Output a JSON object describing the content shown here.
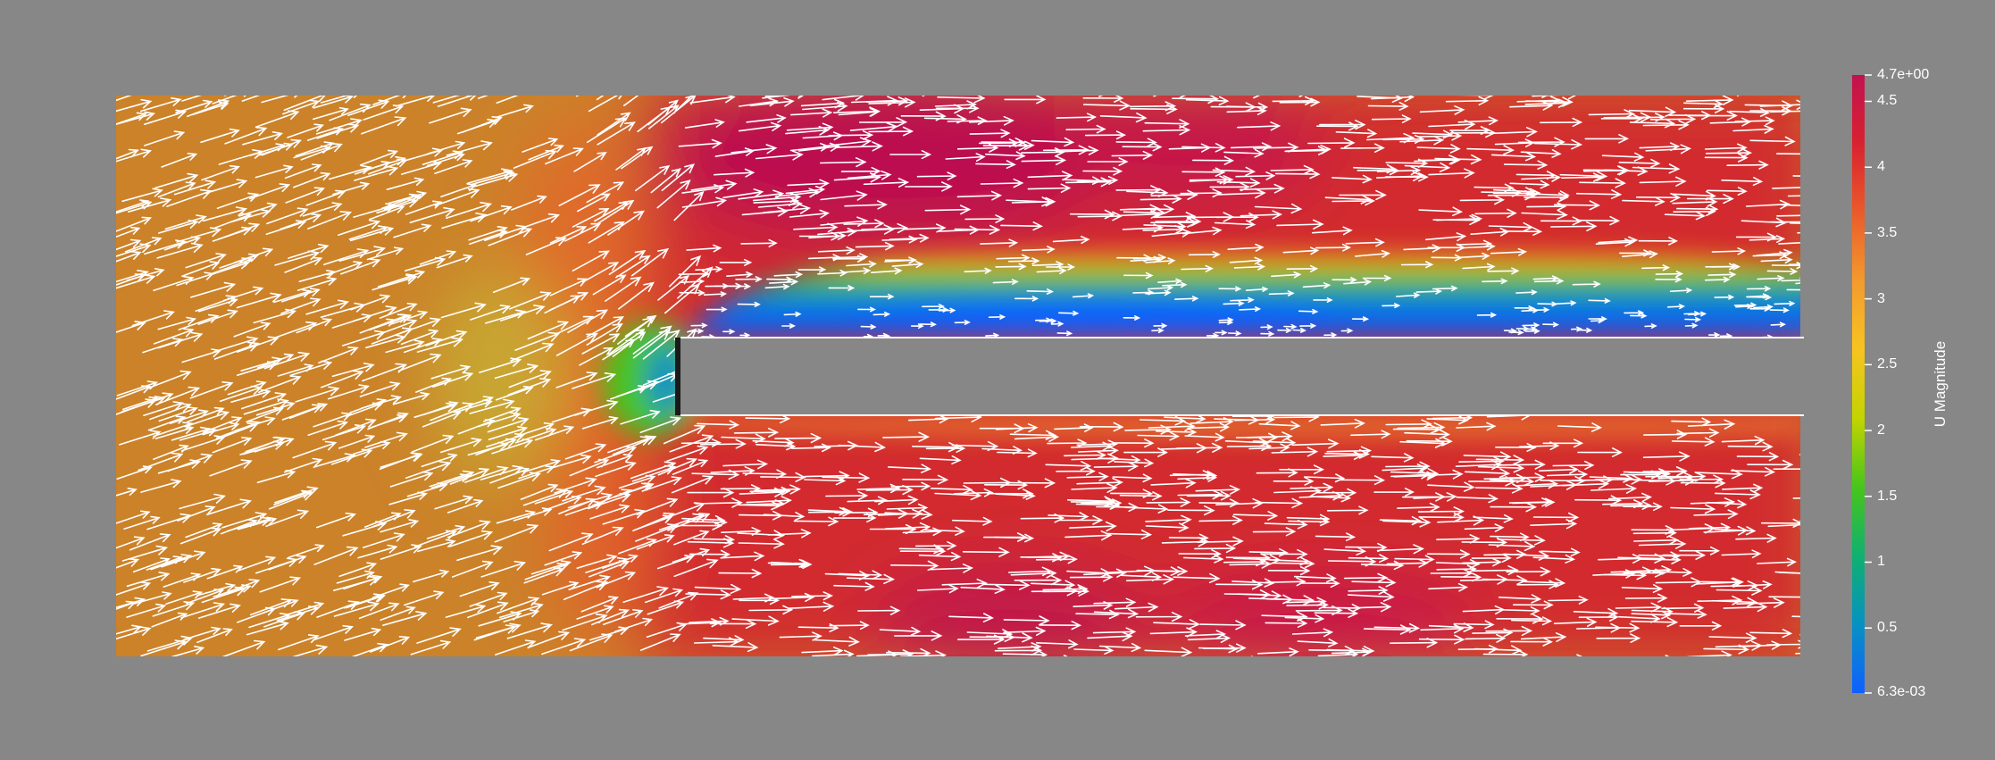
{
  "scene": {
    "background_color": "#878787",
    "glyph_color": "#ffffff",
    "obstacle_color": "#878787"
  },
  "colorbar": {
    "title": "U Magnitude",
    "range_min_label": "6.3e-03",
    "range_max_label": "4.7e+00",
    "range": [
      0.0063,
      4.7
    ],
    "ticks": [
      {
        "value": 4.5,
        "label": "4.5"
      },
      {
        "value": 4,
        "label": "4"
      },
      {
        "value": 3.5,
        "label": "3.5"
      },
      {
        "value": 3,
        "label": "3"
      },
      {
        "value": 2.5,
        "label": "2.5"
      },
      {
        "value": 2,
        "label": "2"
      },
      {
        "value": 1.5,
        "label": "1.5"
      },
      {
        "value": 1,
        "label": "1"
      },
      {
        "value": 0.5,
        "label": "0.5"
      }
    ],
    "colormap": [
      "#0f60ff",
      "#0891c2",
      "#10b070",
      "#47c51b",
      "#c2d400",
      "#f7c41f",
      "#f49a2e",
      "#ea5a2a",
      "#d82230",
      "#c2124f"
    ]
  }
}
